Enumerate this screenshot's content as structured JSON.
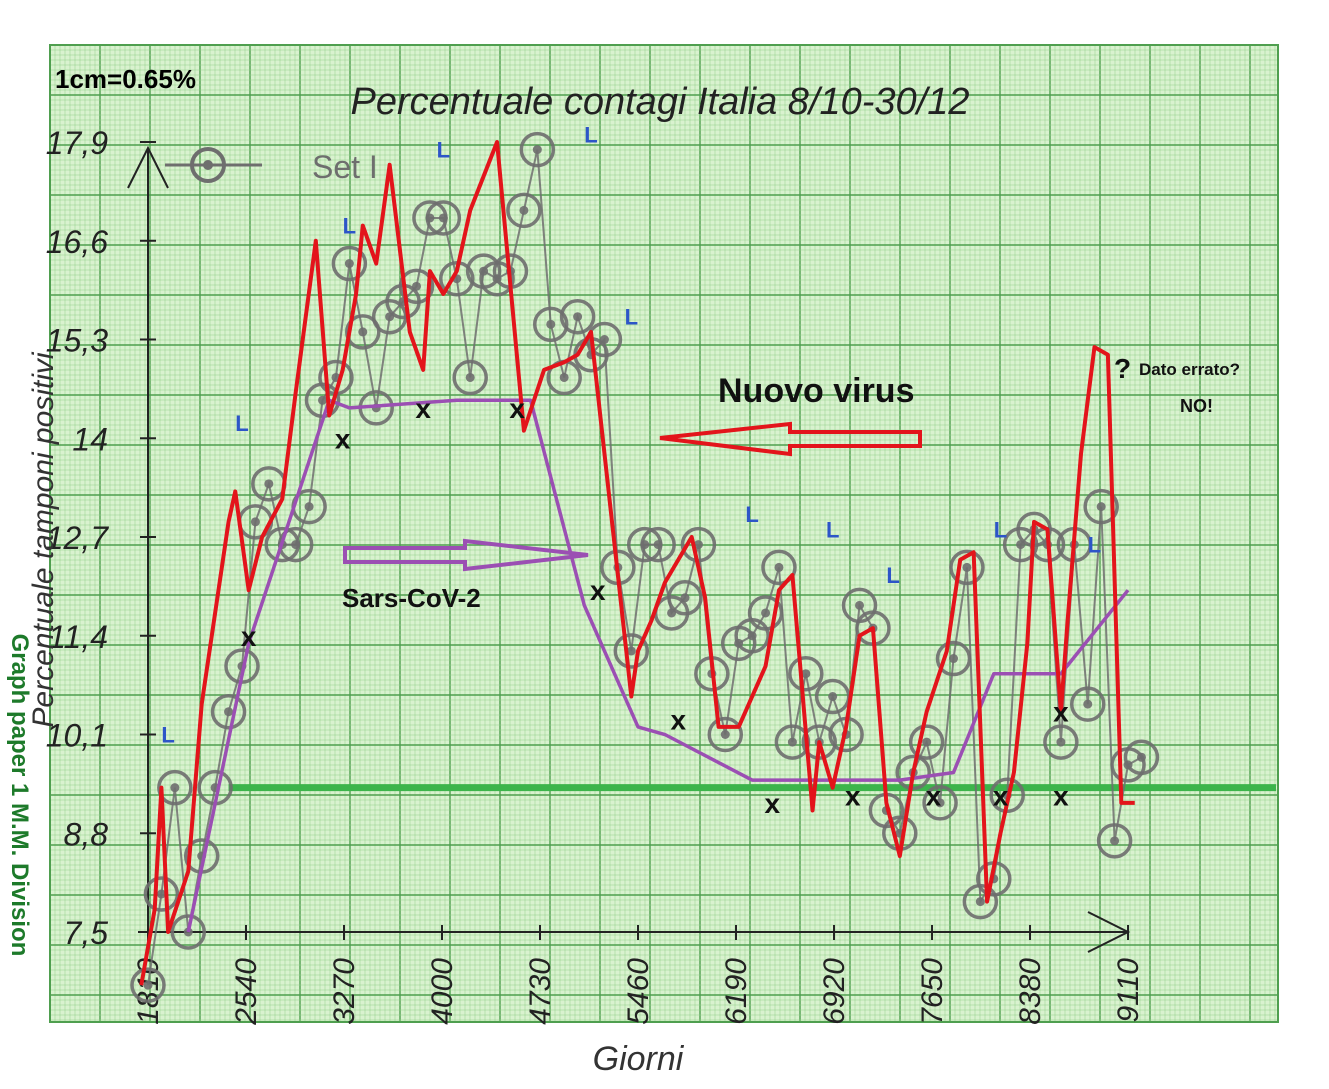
{
  "chart_data": {
    "type": "line",
    "title": "Percentuale contagi Italia 8/10-30/12",
    "scale_note": "1cm=0.65%",
    "xlabel": "Giorni",
    "ylabel": "Percentuale tamponi positivi",
    "side_label": "Graph paper 1 M.M. Division",
    "legend": {
      "label": "Set I",
      "position": "top-left"
    },
    "grid": true,
    "x_ticks": [
      "1810",
      "2540",
      "3270",
      "4000",
      "4730",
      "5460",
      "6190",
      "6920",
      "7650",
      "8380",
      "9110"
    ],
    "y_ticks": [
      "7,5",
      "8,8",
      "10,1",
      "11,4",
      "12,7",
      "14",
      "15,3",
      "16,6",
      "17,9"
    ],
    "xlim": [
      1810,
      9110
    ],
    "ylim": [
      7.5,
      17.9
    ],
    "series": [
      {
        "name": "Set I",
        "color": "#6e6e6e",
        "marker": "circle",
        "x": [
          1810,
          1910,
          2010,
          2110,
          2210,
          2310,
          2410,
          2510,
          2610,
          2710,
          2810,
          2910,
          3010,
          3110,
          3210,
          3310,
          3410,
          3510,
          3610,
          3710,
          3810,
          3910,
          4010,
          4110,
          4210,
          4310,
          4410,
          4510,
          4610,
          4710,
          4810,
          4910,
          5010,
          5110,
          5210,
          5310,
          5410,
          5510,
          5610,
          5710,
          5810,
          5910,
          6010,
          6110,
          6210,
          6310,
          6410,
          6510,
          6610,
          6710,
          6810,
          6910,
          7010,
          7110,
          7210,
          7310,
          7410,
          7510,
          7610,
          7710,
          7810,
          7910,
          8010,
          8110,
          8210,
          8310,
          8410,
          8510,
          8610,
          8710,
          8810,
          8910,
          9010,
          9110,
          9210
        ],
        "y": [
          6.8,
          8.0,
          9.4,
          7.5,
          8.5,
          9.4,
          10.4,
          11.0,
          12.9,
          13.4,
          12.6,
          12.6,
          13.1,
          14.5,
          14.8,
          16.3,
          15.4,
          14.4,
          15.6,
          15.8,
          16.0,
          16.9,
          16.9,
          16.1,
          14.8,
          16.2,
          16.1,
          16.2,
          17.0,
          17.8,
          15.5,
          14.8,
          15.6,
          15.1,
          15.3,
          12.3,
          11.2,
          12.6,
          12.6,
          11.7,
          11.9,
          12.6,
          10.9,
          10.1,
          11.3,
          11.4,
          11.7,
          12.3,
          10.0,
          10.9,
          10.0,
          10.6,
          10.1,
          11.8,
          11.5,
          9.1,
          8.8,
          9.6,
          10.0,
          9.2,
          11.1,
          12.3,
          7.9,
          8.2,
          9.3,
          12.6,
          12.8,
          12.6,
          10.0,
          12.6,
          10.5,
          13.1,
          8.7,
          9.7,
          9.8
        ]
      },
      {
        "name": "",
        "color": "#e3141b",
        "x": [
          1760,
          1860,
          1910,
          1960,
          2110,
          2210,
          2410,
          2460,
          2560,
          2660,
          2810,
          2910,
          3060,
          3160,
          3260,
          3360,
          3410,
          3510,
          3610,
          3760,
          3860,
          3910,
          4010,
          4110,
          4210,
          4410,
          4610,
          4760,
          4910,
          5010,
          5110,
          5310,
          5410,
          5460,
          5560,
          5660,
          5760,
          5860,
          5960,
          6060,
          6210,
          6310,
          6410,
          6510,
          6610,
          6760,
          6810,
          6910,
          7010,
          7110,
          7210,
          7310,
          7410,
          7510,
          7610,
          7760,
          7860,
          7960,
          8060,
          8160,
          8260,
          8360,
          8410,
          8510,
          8610,
          8660,
          8760,
          8860,
          8960,
          9060,
          9160
        ],
        "y": [
          6.8,
          7.8,
          9.4,
          7.5,
          8.3,
          10.5,
          12.9,
          13.3,
          12.0,
          12.7,
          13.2,
          14.6,
          16.6,
          14.3,
          14.9,
          15.9,
          16.8,
          16.3,
          17.6,
          15.4,
          14.9,
          16.2,
          15.9,
          16.2,
          17.0,
          17.9,
          14.1,
          14.9,
          15.0,
          15.1,
          15.4,
          12.2,
          10.6,
          11.2,
          11.6,
          12.1,
          12.4,
          12.7,
          11.9,
          10.2,
          10.2,
          10.6,
          11.0,
          12.0,
          12.2,
          9.1,
          10.0,
          9.4,
          10.2,
          11.4,
          11.5,
          9.2,
          8.5,
          9.6,
          10.4,
          11.2,
          12.4,
          12.5,
          7.9,
          8.8,
          9.6,
          11.3,
          12.9,
          12.8,
          10.4,
          11.6,
          13.8,
          15.2,
          15.1,
          9.2,
          9.2
        ]
      },
      {
        "name": "",
        "color": "#9b4fb3",
        "x": [
          2110,
          2560,
          3160,
          3310,
          4110,
          4660,
          5060,
          5360,
          5460,
          5660,
          6310,
          6910,
          7410,
          7810,
          8110,
          8610,
          9110
        ],
        "y": [
          7.5,
          11.3,
          14.5,
          14.4,
          14.5,
          14.5,
          11.8,
          10.6,
          10.2,
          10.1,
          9.5,
          9.5,
          9.5,
          9.6,
          10.9,
          10.9,
          12.0
        ]
      },
      {
        "name": "",
        "color": "#3cb44b",
        "x": [
          2410,
          9110
        ],
        "y": [
          9.4,
          9.4
        ]
      }
    ],
    "x_markers_label": "x",
    "x_markers": [
      {
        "x": 2560,
        "y": 11.4
      },
      {
        "x": 3260,
        "y": 14.0
      },
      {
        "x": 3860,
        "y": 14.4
      },
      {
        "x": 4560,
        "y": 14.4
      },
      {
        "x": 5160,
        "y": 12.0
      },
      {
        "x": 5760,
        "y": 10.3
      },
      {
        "x": 6460,
        "y": 9.2
      },
      {
        "x": 7060,
        "y": 9.3
      },
      {
        "x": 7660,
        "y": 9.3
      },
      {
        "x": 8160,
        "y": 9.3
      },
      {
        "x": 8610,
        "y": 10.4
      },
      {
        "x": 8610,
        "y": 9.3
      }
    ],
    "l_markers_label": "L",
    "l_markers": [
      {
        "x": 1960,
        "y": 10.1
      },
      {
        "x": 2510,
        "y": 14.2
      },
      {
        "x": 3310,
        "y": 16.8
      },
      {
        "x": 4010,
        "y": 17.8
      },
      {
        "x": 5110,
        "y": 18.0
      },
      {
        "x": 5410,
        "y": 15.6
      },
      {
        "x": 6310,
        "y": 13.0
      },
      {
        "x": 6910,
        "y": 12.8
      },
      {
        "x": 7360,
        "y": 12.2
      },
      {
        "x": 8160,
        "y": 12.8
      },
      {
        "x": 8860,
        "y": 12.6
      }
    ],
    "annotations": [
      {
        "text": "Nuovo virus"
      },
      {
        "text": "Sars-CoV-2"
      },
      {
        "text": "?"
      },
      {
        "text": "Dato errato?"
      },
      {
        "text": "NO!"
      }
    ]
  }
}
